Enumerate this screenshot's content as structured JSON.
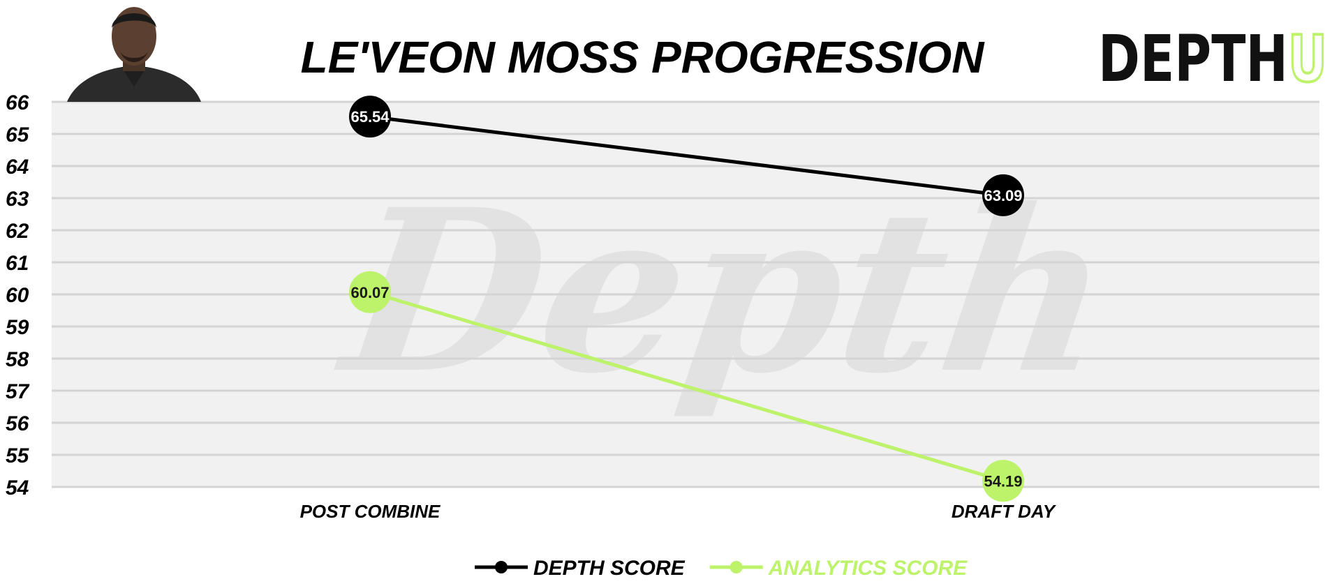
{
  "header": {
    "logo_main": "DEPTH",
    "logo_accent": "U",
    "watermark": "Depth"
  },
  "chart_data": {
    "type": "line",
    "title": "LE'VEON MOSS PROGRESSION",
    "categories": [
      "POST COMBINE",
      "DRAFT DAY"
    ],
    "series": [
      {
        "name": "DEPTH SCORE",
        "values": [
          65.54,
          63.09
        ],
        "color": "#000000",
        "label_color": "#ffffff"
      },
      {
        "name": "ANALYTICS SCORE",
        "values": [
          60.07,
          54.19
        ],
        "color": "#bdf26b",
        "label_color": "#1a1a1a"
      }
    ],
    "ylim": [
      54,
      66
    ],
    "yticks": [
      54,
      55,
      56,
      57,
      58,
      59,
      60,
      61,
      62,
      63,
      64,
      65,
      66
    ],
    "grid": true,
    "legend": "bottom-center",
    "plot_bg": "#f1f1f1",
    "logo_accent_color": "#bdf26b"
  }
}
